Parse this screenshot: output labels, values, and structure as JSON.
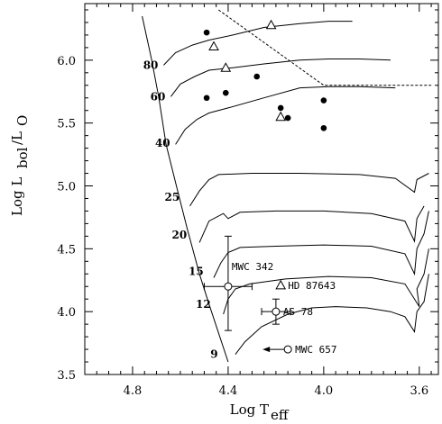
{
  "chart_data": {
    "type": "scatter",
    "title": "",
    "xlabel": "Log T",
    "xlabel_sub": "eff",
    "ylabel_parts": [
      "Log L",
      "bol",
      "/L",
      "O"
    ],
    "xlim": [
      5.0,
      3.52
    ],
    "ylim": [
      3.5,
      6.45
    ],
    "x_ticks": [
      4.8,
      4.4,
      4.0,
      3.6
    ],
    "x_tick_labels": [
      "4.8",
      "4.4",
      "4.0",
      "3.6"
    ],
    "y_ticks": [
      3.5,
      4.0,
      4.5,
      5.0,
      5.5,
      6.0
    ],
    "y_tick_labels": [
      "3.5",
      "4.0",
      "4.5",
      "5.0",
      "5.5",
      "6.0"
    ],
    "grid": false,
    "legend": "none",
    "colors": {
      "ink": "#000000",
      "background": "#ffffff"
    },
    "mass_labels": [
      {
        "text": "80",
        "x": 4.67,
        "y": 5.96
      },
      {
        "text": "60",
        "x": 4.64,
        "y": 5.71
      },
      {
        "text": "40",
        "x": 4.62,
        "y": 5.34
      },
      {
        "text": "25",
        "x": 4.58,
        "y": 4.91
      },
      {
        "text": "20",
        "x": 4.55,
        "y": 4.61
      },
      {
        "text": "15",
        "x": 4.48,
        "y": 4.32
      },
      {
        "text": "12",
        "x": 4.45,
        "y": 4.06
      },
      {
        "text": "9",
        "x": 4.42,
        "y": 3.66
      }
    ],
    "tracks": [
      {
        "mass": "9",
        "points": [
          [
            4.37,
            3.66
          ],
          [
            4.33,
            3.76
          ],
          [
            4.26,
            3.88
          ],
          [
            4.15,
            3.98
          ],
          [
            4.05,
            4.03
          ],
          [
            3.95,
            4.04
          ],
          [
            3.82,
            4.03
          ],
          [
            3.72,
            4.0
          ],
          [
            3.66,
            3.96
          ],
          [
            3.62,
            3.84
          ],
          [
            3.61,
            4.0
          ],
          [
            3.58,
            4.08
          ],
          [
            3.56,
            4.3
          ]
        ]
      },
      {
        "mass": "12",
        "points": [
          [
            4.42,
            3.98
          ],
          [
            4.4,
            4.1
          ],
          [
            4.37,
            4.18
          ],
          [
            4.31,
            4.22
          ],
          [
            4.16,
            4.26
          ],
          [
            3.98,
            4.28
          ],
          [
            3.8,
            4.27
          ],
          [
            3.66,
            4.22
          ],
          [
            3.6,
            4.04
          ],
          [
            3.61,
            4.18
          ],
          [
            3.58,
            4.3
          ],
          [
            3.56,
            4.5
          ]
        ]
      },
      {
        "mass": "15",
        "points": [
          [
            4.46,
            4.27
          ],
          [
            4.43,
            4.39
          ],
          [
            4.4,
            4.47
          ],
          [
            4.35,
            4.51
          ],
          [
            4.2,
            4.52
          ],
          [
            4.0,
            4.53
          ],
          [
            3.8,
            4.52
          ],
          [
            3.66,
            4.46
          ],
          [
            3.62,
            4.3
          ],
          [
            3.61,
            4.5
          ],
          [
            3.58,
            4.62
          ],
          [
            3.56,
            4.8
          ]
        ]
      },
      {
        "mass": "20",
        "points": [
          [
            4.52,
            4.55
          ],
          [
            4.48,
            4.72
          ],
          [
            4.42,
            4.78
          ],
          [
            4.4,
            4.74
          ],
          [
            4.35,
            4.79
          ],
          [
            4.2,
            4.8
          ],
          [
            4.0,
            4.8
          ],
          [
            3.8,
            4.78
          ],
          [
            3.66,
            4.72
          ],
          [
            3.62,
            4.56
          ],
          [
            3.61,
            4.74
          ],
          [
            3.58,
            4.84
          ]
        ]
      },
      {
        "mass": "25",
        "points": [
          [
            4.56,
            4.84
          ],
          [
            4.52,
            4.96
          ],
          [
            4.48,
            5.05
          ],
          [
            4.44,
            5.09
          ],
          [
            4.3,
            5.1
          ],
          [
            4.1,
            5.1
          ],
          [
            3.85,
            5.09
          ],
          [
            3.7,
            5.06
          ],
          [
            3.62,
            4.95
          ],
          [
            3.61,
            5.05
          ],
          [
            3.56,
            5.1
          ]
        ]
      },
      {
        "mass": "40",
        "points": [
          [
            4.62,
            5.33
          ],
          [
            4.58,
            5.45
          ],
          [
            4.53,
            5.53
          ],
          [
            4.48,
            5.58
          ],
          [
            4.4,
            5.62
          ],
          [
            4.25,
            5.7
          ],
          [
            4.1,
            5.78
          ],
          [
            3.98,
            5.79
          ],
          [
            3.85,
            5.79
          ],
          [
            3.7,
            5.78
          ]
        ]
      },
      {
        "mass": "60",
        "points": [
          [
            4.64,
            5.71
          ],
          [
            4.6,
            5.81
          ],
          [
            4.54,
            5.87
          ],
          [
            4.48,
            5.92
          ],
          [
            4.38,
            5.94
          ],
          [
            4.25,
            5.97
          ],
          [
            4.1,
            6.0
          ],
          [
            3.98,
            6.01
          ],
          [
            3.85,
            6.01
          ],
          [
            3.72,
            6.0
          ]
        ]
      },
      {
        "mass": "80",
        "points": [
          [
            4.67,
            5.96
          ],
          [
            4.62,
            6.06
          ],
          [
            4.55,
            6.12
          ],
          [
            4.48,
            6.16
          ],
          [
            4.38,
            6.2
          ],
          [
            4.25,
            6.26
          ],
          [
            4.1,
            6.29
          ],
          [
            3.98,
            6.31
          ],
          [
            3.88,
            6.31
          ]
        ]
      }
    ],
    "zams": [
      [
        4.4,
        3.6
      ],
      [
        4.48,
        4.06
      ],
      [
        4.52,
        4.3
      ],
      [
        4.57,
        4.65
      ],
      [
        4.61,
        4.95
      ],
      [
        4.66,
        5.33
      ],
      [
        4.69,
        5.7
      ],
      [
        4.72,
        6.0
      ],
      [
        4.76,
        6.35
      ]
    ],
    "hd_limit": [
      [
        4.44,
        6.4
      ],
      [
        4.0,
        5.8
      ],
      [
        3.55,
        5.8
      ]
    ],
    "filled_points": [
      {
        "x": 4.49,
        "y": 6.22
      },
      {
        "x": 4.28,
        "y": 5.87
      },
      {
        "x": 4.41,
        "y": 5.74
      },
      {
        "x": 4.49,
        "y": 5.7
      },
      {
        "x": 4.18,
        "y": 5.62
      },
      {
        "x": 4.0,
        "y": 5.68
      },
      {
        "x": 4.15,
        "y": 5.54
      },
      {
        "x": 4.0,
        "y": 5.46
      }
    ],
    "triangle_points": [
      {
        "x": 4.22,
        "y": 6.28
      },
      {
        "x": 4.46,
        "y": 6.11
      },
      {
        "x": 4.41,
        "y": 5.94
      },
      {
        "x": 4.18,
        "y": 5.55
      },
      {
        "x": 4.18,
        "y": 4.21
      }
    ],
    "labeled_stars": [
      {
        "name": "MWC 342",
        "x": 4.4,
        "y": 4.2,
        "xerr": 0.1,
        "yerr_up": 0.4,
        "yerr_down": 0.35,
        "marker": "circle"
      },
      {
        "name": "HD 87643",
        "x": 4.18,
        "y": 4.21,
        "marker": "none"
      },
      {
        "name": "AS 78",
        "x": 4.2,
        "y": 4.0,
        "xerr": 0.06,
        "yerr": 0.1,
        "marker": "circle"
      },
      {
        "name": "MWC 657",
        "x": 4.15,
        "y": 3.7,
        "marker": "circle",
        "arrow": "left"
      }
    ]
  }
}
